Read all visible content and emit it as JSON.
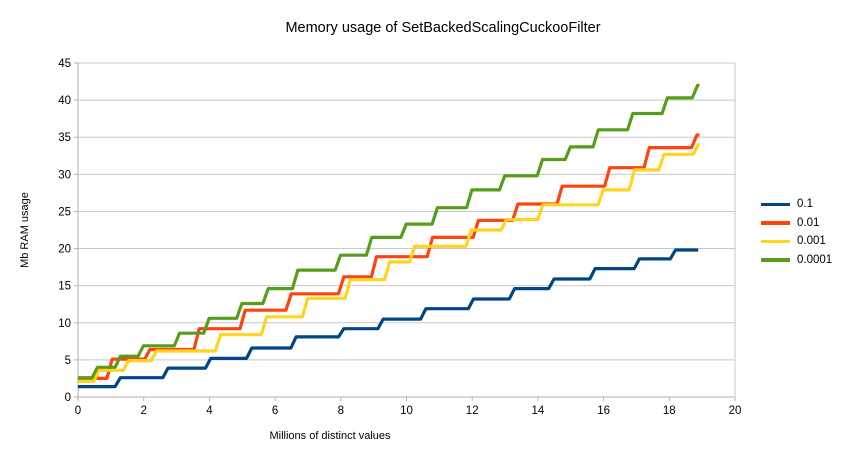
{
  "chart_data": {
    "type": "line",
    "style": "step",
    "title": "Memory usage of SetBackedScalingCuckooFilter",
    "xlabel": "Millions of distinct values",
    "ylabel": "Mb RAM usage",
    "xlim": [
      0,
      20
    ],
    "ylim": [
      0,
      45
    ],
    "xticks": [
      0,
      2,
      4,
      6,
      8,
      10,
      12,
      14,
      16,
      18,
      20
    ],
    "yticks": [
      0,
      5,
      10,
      15,
      20,
      25,
      30,
      35,
      40,
      45
    ],
    "grid": "horizontal-only",
    "legend_position": "right",
    "series": [
      {
        "name": "0.1",
        "color": "#004586",
        "x_end": 18.88,
        "points": [
          [
            0,
            1.4
          ],
          [
            1.2,
            2.6
          ],
          [
            2.65,
            3.9
          ],
          [
            3.95,
            5.2
          ],
          [
            5.2,
            6.6
          ],
          [
            6.55,
            8.1
          ],
          [
            8.0,
            9.2
          ],
          [
            9.2,
            10.5
          ],
          [
            10.5,
            11.9
          ],
          [
            11.95,
            13.2
          ],
          [
            13.2,
            14.6
          ],
          [
            14.4,
            15.9
          ],
          [
            15.65,
            17.3
          ],
          [
            17.0,
            18.6
          ],
          [
            18.1,
            19.8
          ]
        ]
      },
      {
        "name": "0.01",
        "color": "#FF420E",
        "x_end": 18.92,
        "points": [
          [
            0,
            2.5
          ],
          [
            0.95,
            5.1
          ],
          [
            2.1,
            6.4
          ],
          [
            3.6,
            9.2
          ],
          [
            5.0,
            11.7
          ],
          [
            6.4,
            13.9
          ],
          [
            8.0,
            16.2
          ],
          [
            9.0,
            18.9
          ],
          [
            10.7,
            21.5
          ],
          [
            12.1,
            23.8
          ],
          [
            13.3,
            26.0
          ],
          [
            14.65,
            28.4
          ],
          [
            16.1,
            30.9
          ],
          [
            17.3,
            33.6
          ],
          [
            18.75,
            35.3
          ]
        ]
      },
      {
        "name": "0.001",
        "color": "#FFD320",
        "x_end": 18.92,
        "points": [
          [
            0,
            2.1
          ],
          [
            0.55,
            3.6
          ],
          [
            1.45,
            4.9
          ],
          [
            2.3,
            6.2
          ],
          [
            4.25,
            8.4
          ],
          [
            5.65,
            10.8
          ],
          [
            6.9,
            13.3
          ],
          [
            8.2,
            15.8
          ],
          [
            9.4,
            18.2
          ],
          [
            10.16,
            20.3
          ],
          [
            11.88,
            22.5
          ],
          [
            12.95,
            23.9
          ],
          [
            14.06,
            25.9
          ],
          [
            15.9,
            27.9
          ],
          [
            16.85,
            30.6
          ],
          [
            17.75,
            32.7
          ],
          [
            18.8,
            34.0
          ]
        ]
      },
      {
        "name": "0.0001",
        "color": "#579D1C",
        "x_end": 18.92,
        "points": [
          [
            0,
            2.6
          ],
          [
            0.5,
            4.0
          ],
          [
            1.2,
            5.5
          ],
          [
            1.9,
            6.9
          ],
          [
            3.0,
            8.6
          ],
          [
            3.9,
            10.6
          ],
          [
            4.9,
            12.6
          ],
          [
            5.7,
            14.6
          ],
          [
            6.6,
            17.1
          ],
          [
            7.9,
            19.1
          ],
          [
            8.85,
            21.5
          ],
          [
            9.9,
            23.3
          ],
          [
            10.85,
            25.5
          ],
          [
            11.9,
            27.9
          ],
          [
            12.9,
            29.8
          ],
          [
            14.05,
            32.0
          ],
          [
            14.9,
            33.7
          ],
          [
            15.75,
            36.0
          ],
          [
            16.8,
            38.2
          ],
          [
            17.85,
            40.3
          ],
          [
            18.77,
            42.0
          ]
        ]
      }
    ],
    "colors": {
      "gridline": "#c8c8c8",
      "axis": "#b0b0b0",
      "text": "#000000",
      "background": "#ffffff"
    }
  }
}
